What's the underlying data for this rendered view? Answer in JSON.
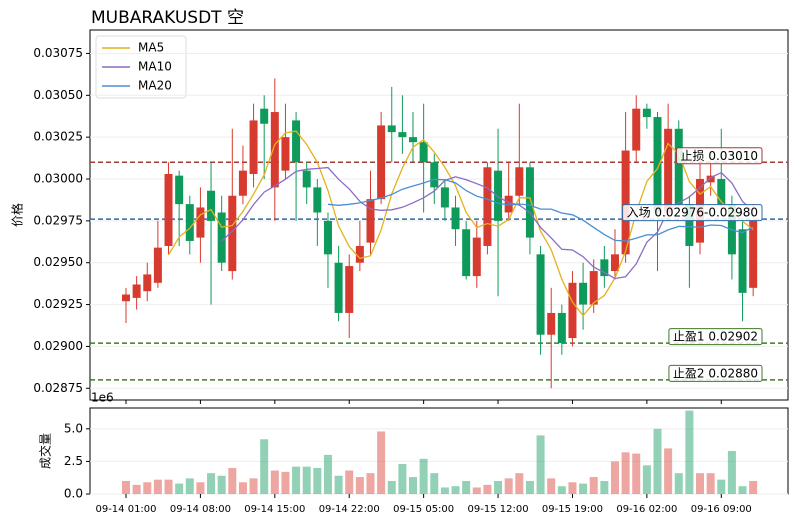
{
  "chart_data": [
    {
      "type": "candlestick",
      "title": "MUBARAKUSDT  空",
      "ylabel": "价格",
      "ylim": [
        0.02868,
        0.03089
      ],
      "yticks": [
        0.02875,
        {
          "value": 0.029,
          "label": "0.02900"
        },
        0.02925,
        {
          "value": 0.0295,
          "label": "0.02950"
        },
        0.02975,
        {
          "value": 0.03,
          "label": "0.03000"
        },
        0.03025,
        {
          "value": 0.0305,
          "label": "0.03050"
        },
        0.03075
      ],
      "grid": true,
      "legend": "upper left",
      "up_color": "#d73a2e",
      "down_color": "#0e9a5a",
      "open": [
        0.02927,
        0.02929,
        0.02933,
        0.02938,
        0.0296,
        0.03002,
        0.02985,
        0.02965,
        0.02993,
        0.0298,
        0.02945,
        0.0299,
        0.03003,
        0.03042,
        0.02995,
        0.03005,
        0.03035,
        0.03005,
        0.02995,
        0.02975,
        0.0295,
        0.0292,
        0.0295,
        0.02962,
        0.02988,
        0.03032,
        0.03028,
        0.03025,
        0.03022,
        0.0301,
        0.02995,
        0.02983,
        0.0297,
        0.02942,
        0.0296,
        0.03005,
        0.0298,
        0.0299,
        0.03007,
        0.02955,
        0.02907,
        0.0292,
        0.02905,
        0.02938,
        0.02925,
        0.02952,
        0.02945,
        0.02955,
        0.03017,
        0.03042,
        0.03037,
        0.0298,
        0.0303,
        0.02985,
        0.02962,
        0.02998,
        0.03,
        0.02985,
        0.0297,
        0.02935
      ],
      "high": [
        0.02935,
        0.02942,
        0.0295,
        0.02975,
        0.0301,
        0.03005,
        0.0299,
        0.02995,
        0.0301,
        0.0299,
        0.0303,
        0.0302,
        0.03045,
        0.0305,
        0.0306,
        0.03045,
        0.0304,
        0.0301,
        0.03,
        0.0298,
        0.0296,
        0.02955,
        0.02975,
        0.03005,
        0.0304,
        0.03055,
        0.0305,
        0.0304,
        0.03045,
        0.03015,
        0.03,
        0.0299,
        0.02975,
        0.02975,
        0.0301,
        0.0303,
        0.0301,
        0.03045,
        0.0301,
        0.0296,
        0.02935,
        0.02925,
        0.02945,
        0.0295,
        0.02952,
        0.0296,
        0.0297,
        0.0304,
        0.0305,
        0.03045,
        0.0304,
        0.03045,
        0.03035,
        0.0299,
        0.03015,
        0.0301,
        0.0303,
        0.0299,
        0.02975,
        0.02985
      ],
      "low": [
        0.02914,
        0.02922,
        0.02927,
        0.02935,
        0.02955,
        0.0296,
        0.02955,
        0.0295,
        0.02925,
        0.02945,
        0.0294,
        0.02985,
        0.02995,
        0.03,
        0.02975,
        0.03,
        0.02975,
        0.02985,
        0.0296,
        0.02935,
        0.02915,
        0.02905,
        0.02945,
        0.02955,
        0.02985,
        0.0301,
        0.03015,
        0.0301,
        0.0298,
        0.02985,
        0.02975,
        0.0296,
        0.0294,
        0.02935,
        0.02955,
        0.0293,
        0.02975,
        0.02985,
        0.02955,
        0.02895,
        0.02875,
        0.02895,
        0.029,
        0.0291,
        0.0292,
        0.02935,
        0.0294,
        0.0295,
        0.0301,
        0.0303,
        0.02945,
        0.02975,
        0.0298,
        0.02935,
        0.02955,
        0.0299,
        0.0298,
        0.0294,
        0.02915,
        0.0293
      ],
      "close": [
        0.02931,
        0.02937,
        0.02943,
        0.02959,
        0.03003,
        0.02985,
        0.02963,
        0.02983,
        0.02975,
        0.0295,
        0.0299,
        0.03005,
        0.03035,
        0.03033,
        0.0304,
        0.03025,
        0.0301,
        0.02995,
        0.0298,
        0.02955,
        0.0292,
        0.02948,
        0.0296,
        0.02988,
        0.03032,
        0.03028,
        0.03025,
        0.03022,
        0.0301,
        0.02995,
        0.02983,
        0.0297,
        0.02942,
        0.02965,
        0.03007,
        0.02975,
        0.0299,
        0.03007,
        0.02965,
        0.02907,
        0.0292,
        0.02902,
        0.02938,
        0.02925,
        0.02945,
        0.02942,
        0.02955,
        0.03017,
        0.03042,
        0.03037,
        0.0298,
        0.0303,
        0.02985,
        0.0296,
        0.03,
        0.03002,
        0.02985,
        0.02955,
        0.02932,
        0.02975
      ],
      "series": [
        {
          "name": "MA5",
          "color": "#e3b21c",
          "values": [
            null,
            null,
            null,
            null,
            0.029546,
            0.029654,
            0.029706,
            0.029786,
            0.029818,
            0.029712,
            0.029722,
            0.029806,
            0.02991,
            0.030026,
            0.030206,
            0.030276,
            0.030286,
            0.030206,
            0.0301,
            0.02993,
            0.02972,
            0.029596,
            0.029526,
            0.029542,
            0.029696,
            0.029912,
            0.030066,
            0.03019,
            0.030234,
            0.03016,
            0.03007,
            0.02996,
            0.0298,
            0.02971,
            0.029734,
            0.029718,
            0.029758,
            0.029888,
            0.029888,
            0.029688,
            0.029578,
            0.029402,
            0.029264,
            0.029184,
            0.02926,
            0.029304,
            0.02941,
            0.029568,
            0.029802,
            0.029986,
            0.030062,
            0.030212,
            0.030148,
            0.029984,
            0.02991,
            0.029954,
            0.029864,
            0.029804,
            0.029748,
            0.029698
          ]
        },
        {
          "name": "MA10",
          "color": "#8a6cc4",
          "values": [
            null,
            null,
            null,
            null,
            null,
            null,
            null,
            null,
            null,
            0.029629,
            0.029688,
            0.029756,
            0.029848,
            0.029922,
            0.029959,
            0.029999,
            0.030046,
            0.030058,
            0.030063,
            0.030068,
            0.029998,
            0.029941,
            0.029866,
            0.029821,
            0.029813,
            0.029816,
            0.029831,
            0.029858,
            0.029888,
            0.029928,
            0.029991,
            0.030013,
            0.029995,
            0.029972,
            0.029947,
            0.029894,
            0.029859,
            0.029844,
            0.029799,
            0.029711,
            0.029648,
            0.02958,
            0.029576,
            0.029536,
            0.029474,
            0.029441,
            0.029406,
            0.029416,
            0.029493,
            0.029623,
            0.029683,
            0.029811,
            0.029858,
            0.029893,
            0.029948,
            0.030008,
            0.030038,
            0.029976,
            0.029866,
            0.029804
          ]
        },
        {
          "name": "MA20",
          "color": "#4a8fd4",
          "values": [
            null,
            null,
            null,
            null,
            null,
            null,
            null,
            null,
            null,
            null,
            null,
            null,
            null,
            null,
            null,
            null,
            null,
            null,
            null,
            0.029849,
            0.029843,
            0.029849,
            0.029857,
            0.029872,
            0.029886,
            0.029908,
            0.029939,
            0.029958,
            0.029976,
            0.029998,
            0.029995,
            0.029977,
            0.029931,
            0.029897,
            0.02988,
            0.029855,
            0.029845,
            0.029851,
            0.029844,
            0.02982,
            0.02982,
            0.029797,
            0.029786,
            0.029754,
            0.029711,
            0.029668,
            0.029633,
            0.02963,
            0.029646,
            0.029667,
            0.029666,
            0.029696,
            0.029717,
            0.029715,
            0.029711,
            0.029725,
            0.029722,
            0.029696,
            0.02968,
            0.029714
          ]
        }
      ],
      "hlines": [
        {
          "value": 0.0301,
          "label": "止损 0.03010",
          "color": "#a33a33"
        },
        {
          "value": 0.02976,
          "label": "入场 0.02976-0.02980",
          "color": "#2e6aa8"
        },
        {
          "value": 0.02902,
          "label": "止盈1 0.02902",
          "color": "#3f7a2b"
        },
        {
          "value": 0.0288,
          "label": "止盈2 0.02880",
          "color": "#3f7a2b"
        }
      ]
    },
    {
      "type": "bar",
      "ylabel": "成交量",
      "offset_label": "1e6",
      "ylim": [
        0,
        6.6
      ],
      "yticks": [
        {
          "value": 0,
          "label": "0.0"
        },
        2.5,
        {
          "value": 5,
          "label": "5.0"
        }
      ],
      "grid": true,
      "categories": [
        "09-14 01:00",
        null,
        null,
        null,
        null,
        null,
        null,
        "09-14 08:00",
        null,
        null,
        null,
        null,
        null,
        null,
        "09-14 15:00",
        null,
        null,
        null,
        null,
        null,
        null,
        "09-14 22:00",
        null,
        null,
        null,
        null,
        null,
        null,
        "09-15 05:00",
        null,
        null,
        null,
        null,
        null,
        null,
        "09-15 12:00",
        null,
        null,
        null,
        null,
        null,
        null,
        "09-15 19:00",
        null,
        null,
        null,
        null,
        null,
        null,
        "09-16 02:00",
        null,
        null,
        null,
        null,
        null,
        null,
        "09-16 09:00",
        null,
        null,
        null
      ],
      "values": [
        1.0,
        0.7,
        0.9,
        1.1,
        1.1,
        0.8,
        1.2,
        0.9,
        1.6,
        1.4,
        2.0,
        0.9,
        1.2,
        4.2,
        1.8,
        1.7,
        2.1,
        2.1,
        2.0,
        3.0,
        1.4,
        1.8,
        1.3,
        1.6,
        4.8,
        1.0,
        2.3,
        1.3,
        2.7,
        1.6,
        0.5,
        0.6,
        1.0,
        0.5,
        0.7,
        1.0,
        1.2,
        1.6,
        1.0,
        4.5,
        1.2,
        0.6,
        0.9,
        0.8,
        1.3,
        1.0,
        2.5,
        3.2,
        3.1,
        2.2,
        5.0,
        3.5,
        1.6,
        6.4,
        1.6,
        1.6,
        1.1,
        3.3,
        0.6,
        1.0
      ]
    }
  ]
}
